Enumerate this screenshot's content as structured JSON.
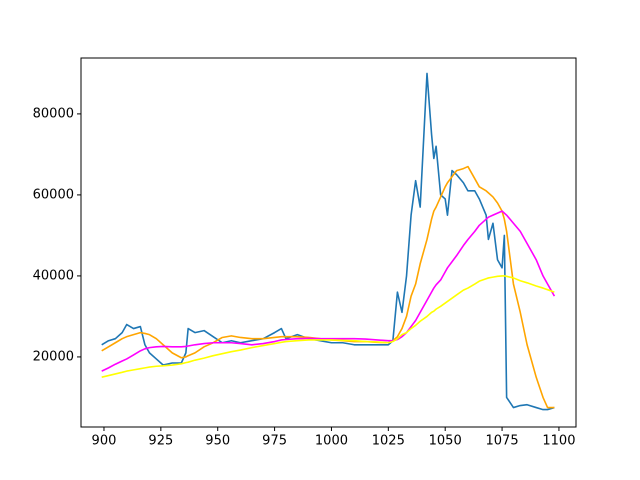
{
  "chart_data": {
    "type": "line",
    "x": [
      899,
      902,
      905,
      908,
      910,
      913,
      916,
      918,
      920,
      923,
      926,
      930,
      934,
      936,
      937,
      940,
      944,
      948,
      952,
      956,
      960,
      965,
      970,
      975,
      978,
      980,
      985,
      990,
      995,
      1000,
      1005,
      1010,
      1015,
      1020,
      1025,
      1027,
      1029,
      1031,
      1033,
      1035,
      1037,
      1039,
      1042,
      1044,
      1045,
      1046,
      1048,
      1050,
      1051,
      1053,
      1055,
      1058,
      1060,
      1063,
      1065,
      1068,
      1069,
      1071,
      1073,
      1075,
      1076,
      1077,
      1080,
      1083,
      1086,
      1090,
      1093,
      1095,
      1098
    ],
    "series": [
      {
        "color": "#1f77b4",
        "values": [
          23000,
          24000,
          24500,
          26000,
          28000,
          27000,
          27500,
          23000,
          21000,
          19500,
          18000,
          18500,
          18500,
          21000,
          27000,
          26000,
          26500,
          25000,
          23500,
          24000,
          23500,
          24000,
          24500,
          26000,
          27000,
          24500,
          25500,
          24500,
          24000,
          23500,
          23500,
          23000,
          23000,
          23000,
          23000,
          24000,
          36000,
          31000,
          40000,
          55000,
          63500,
          57000,
          90000,
          75000,
          69000,
          72000,
          60000,
          59000,
          55000,
          66000,
          65000,
          63000,
          61000,
          61000,
          59000,
          55000,
          49000,
          53000,
          44000,
          42000,
          50000,
          10000,
          7500,
          8000,
          8200,
          7500,
          7000,
          7000,
          7500
        ]
      },
      {
        "color": "#ffa500",
        "values": [
          21500,
          22500,
          23500,
          24500,
          25000,
          25500,
          26000,
          25800,
          25500,
          24500,
          23000,
          21000,
          19800,
          20000,
          20300,
          21000,
          22500,
          23500,
          24800,
          25200,
          24800,
          24500,
          24500,
          24800,
          25000,
          25000,
          25000,
          24800,
          24500,
          24200,
          24000,
          23800,
          23800,
          23600,
          23500,
          24000,
          25000,
          27000,
          30000,
          35000,
          38000,
          43000,
          49000,
          54000,
          56000,
          57000,
          59500,
          62000,
          63000,
          64500,
          66000,
          66500,
          67000,
          64000,
          62000,
          61000,
          60500,
          59500,
          58000,
          56000,
          54000,
          51000,
          38000,
          31000,
          23000,
          15000,
          10000,
          7500,
          7500
        ]
      },
      {
        "color": "#ff00ff",
        "values": [
          16500,
          17300,
          18200,
          19000,
          19500,
          20500,
          21500,
          22000,
          22300,
          22500,
          22600,
          22500,
          22500,
          22600,
          22700,
          23000,
          23300,
          23500,
          23500,
          23500,
          23300,
          23000,
          23300,
          23800,
          24200,
          24300,
          24500,
          24600,
          24500,
          24500,
          24500,
          24500,
          24400,
          24200,
          24000,
          24000,
          24300,
          25000,
          26000,
          27500,
          29000,
          31000,
          34000,
          36000,
          37000,
          37800,
          39000,
          41000,
          42000,
          43500,
          45000,
          47500,
          49000,
          51000,
          52500,
          54000,
          54500,
          55000,
          55500,
          56000,
          55500,
          55000,
          53000,
          51000,
          48000,
          44000,
          40000,
          38000,
          35000
        ]
      },
      {
        "color": "#ffff00",
        "values": [
          15000,
          15400,
          15800,
          16200,
          16500,
          16800,
          17100,
          17300,
          17500,
          17700,
          17800,
          18000,
          18300,
          18600,
          18700,
          19200,
          19700,
          20300,
          20800,
          21300,
          21700,
          22300,
          22800,
          23300,
          23600,
          23800,
          24000,
          24200,
          24200,
          24200,
          24100,
          24000,
          23800,
          23700,
          23500,
          23800,
          24500,
          25500,
          26000,
          27000,
          27800,
          28800,
          30000,
          31000,
          31300,
          31800,
          32500,
          33300,
          33700,
          34500,
          35300,
          36500,
          37000,
          38000,
          38700,
          39300,
          39500,
          39700,
          39900,
          40000,
          40000,
          39900,
          39500,
          38800,
          38300,
          37500,
          37000,
          36600,
          36000
        ]
      }
    ],
    "xlim": [
      889.9,
      1107.5
    ],
    "ylim": [
      2700,
      93800
    ],
    "xticks": [
      900,
      925,
      950,
      975,
      1000,
      1025,
      1050,
      1075,
      1100
    ],
    "yticks": [
      20000,
      40000,
      60000,
      80000
    ]
  }
}
